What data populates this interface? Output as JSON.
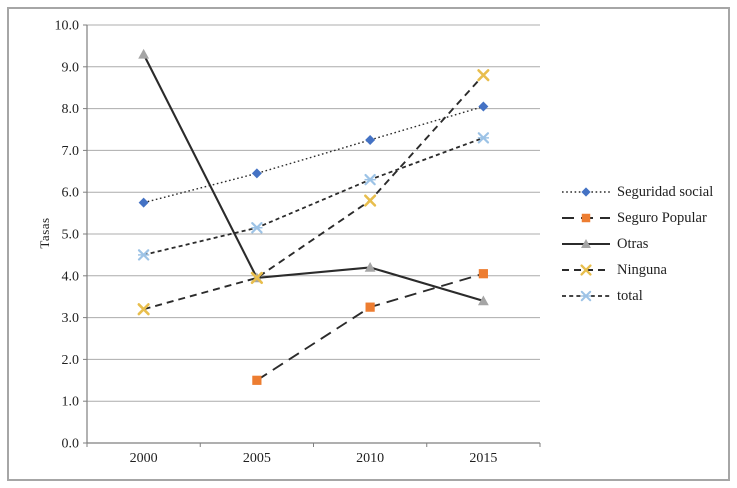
{
  "chart_data": {
    "type": "line",
    "title": "",
    "xlabel": "",
    "ylabel": "Tasas",
    "categories": [
      "2000",
      "2005",
      "2010",
      "2015"
    ],
    "ylim": [
      0,
      10
    ],
    "ytick_step": 1,
    "y_tick_labels": [
      "0.0",
      "1.0",
      "2.0",
      "3.0",
      "4.0",
      "5.0",
      "6.0",
      "7.0",
      "8.0",
      "9.0",
      "10.0"
    ],
    "grid": "horizontal",
    "legend_position": "right",
    "series": [
      {
        "name": "Seguridad social",
        "values": [
          5.75,
          6.45,
          7.25,
          8.05
        ],
        "marker": "diamond",
        "marker_color": "#4472C4",
        "line_style": "dotted"
      },
      {
        "name": "Seguro Popular",
        "values": [
          null,
          1.5,
          3.25,
          4.05
        ],
        "marker": "square",
        "marker_color": "#ED7D31",
        "line_style": "long-dash"
      },
      {
        "name": "Otras",
        "values": [
          9.3,
          3.95,
          4.2,
          3.4
        ],
        "marker": "triangle",
        "marker_color": "#A5A5A5",
        "line_style": "solid"
      },
      {
        "name": "Ninguna",
        "values": [
          3.2,
          3.95,
          5.8,
          8.8
        ],
        "marker": "x",
        "marker_color": "#E8BE4D",
        "line_style": "dash"
      },
      {
        "name": "total",
        "values": [
          4.5,
          5.15,
          6.3,
          7.3
        ],
        "marker": "star",
        "marker_color": "#9DC3E6",
        "line_style": "short-dash"
      }
    ],
    "colors": {
      "series_line": "#2b2b2b",
      "grid": "#acacac",
      "axis": "#7f7f7f",
      "text": "#1f1f1f",
      "frame_border": "#a6a6a6"
    }
  }
}
